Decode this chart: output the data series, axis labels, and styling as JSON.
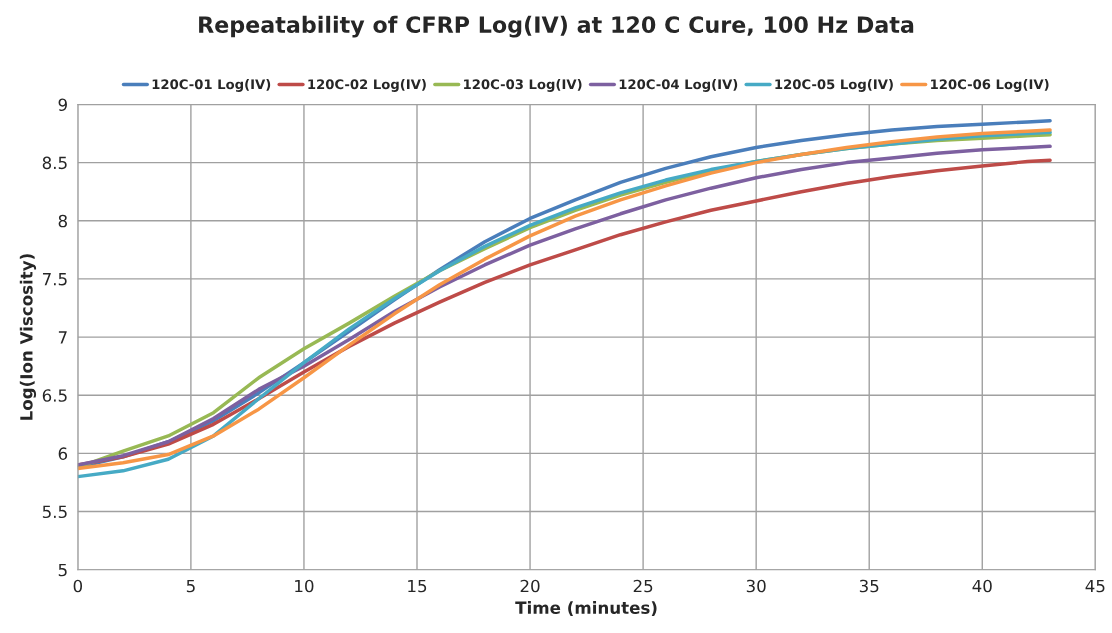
{
  "chart_data": {
    "type": "line",
    "title": "Repeatability of CFRP Log(IV) at 120 C Cure, 100 Hz Data",
    "xlabel": "Time (minutes)",
    "ylabel": "Log(Ion Viscosity)",
    "x": [
      0,
      2,
      4,
      6,
      8,
      10,
      12,
      14,
      16,
      18,
      20,
      22,
      24,
      26,
      28,
      30,
      32,
      34,
      36,
      38,
      40,
      42,
      43
    ],
    "series": [
      {
        "name": "120C-01 Log(IV)",
        "color": "#4a7ebb",
        "values": [
          5.88,
          5.97,
          6.1,
          6.28,
          6.52,
          6.78,
          7.05,
          7.32,
          7.58,
          7.82,
          8.02,
          8.18,
          8.33,
          8.45,
          8.55,
          8.63,
          8.69,
          8.74,
          8.78,
          8.81,
          8.83,
          8.85,
          8.86
        ]
      },
      {
        "name": "120C-02 Log(IV)",
        "color": "#be4b48",
        "values": [
          5.9,
          5.97,
          6.08,
          6.25,
          6.47,
          6.7,
          6.92,
          7.12,
          7.3,
          7.47,
          7.62,
          7.75,
          7.88,
          7.99,
          8.09,
          8.17,
          8.25,
          8.32,
          8.38,
          8.43,
          8.47,
          8.51,
          8.52
        ]
      },
      {
        "name": "120C-03 Log(IV)",
        "color": "#98b954",
        "values": [
          5.88,
          6.02,
          6.15,
          6.35,
          6.65,
          6.9,
          7.12,
          7.35,
          7.57,
          7.76,
          7.94,
          8.09,
          8.22,
          8.33,
          8.43,
          8.51,
          8.57,
          8.62,
          8.66,
          8.69,
          8.71,
          8.73,
          8.74
        ]
      },
      {
        "name": "120C-04 Log(IV)",
        "color": "#7d60a0",
        "values": [
          5.9,
          5.98,
          6.1,
          6.3,
          6.55,
          6.75,
          6.98,
          7.22,
          7.43,
          7.62,
          7.79,
          7.93,
          8.06,
          8.18,
          8.28,
          8.37,
          8.44,
          8.5,
          8.54,
          8.58,
          8.61,
          8.63,
          8.64
        ]
      },
      {
        "name": "120C-05 Log(IV)",
        "color": "#46aac5",
        "values": [
          5.8,
          5.85,
          5.95,
          6.15,
          6.47,
          6.78,
          7.07,
          7.33,
          7.57,
          7.78,
          7.96,
          8.11,
          8.24,
          8.35,
          8.44,
          8.51,
          8.57,
          8.62,
          8.66,
          8.7,
          8.73,
          8.75,
          8.76
        ]
      },
      {
        "name": "120C-06 Log(IV)",
        "color": "#f79646",
        "values": [
          5.87,
          5.92,
          5.99,
          6.15,
          6.38,
          6.65,
          6.93,
          7.2,
          7.45,
          7.67,
          7.87,
          8.04,
          8.18,
          8.3,
          8.41,
          8.5,
          8.57,
          8.63,
          8.68,
          8.72,
          8.75,
          8.77,
          8.78
        ]
      }
    ],
    "xlim": [
      0,
      45
    ],
    "xticks": [
      0,
      5,
      10,
      15,
      20,
      25,
      30,
      35,
      40,
      45
    ],
    "ylim": [
      5,
      9
    ],
    "yticks": [
      5,
      5.5,
      6,
      6.5,
      7,
      7.5,
      8,
      8.5,
      9
    ],
    "grid": true,
    "legend": "top",
    "marker": "none",
    "line_style": "solid"
  }
}
